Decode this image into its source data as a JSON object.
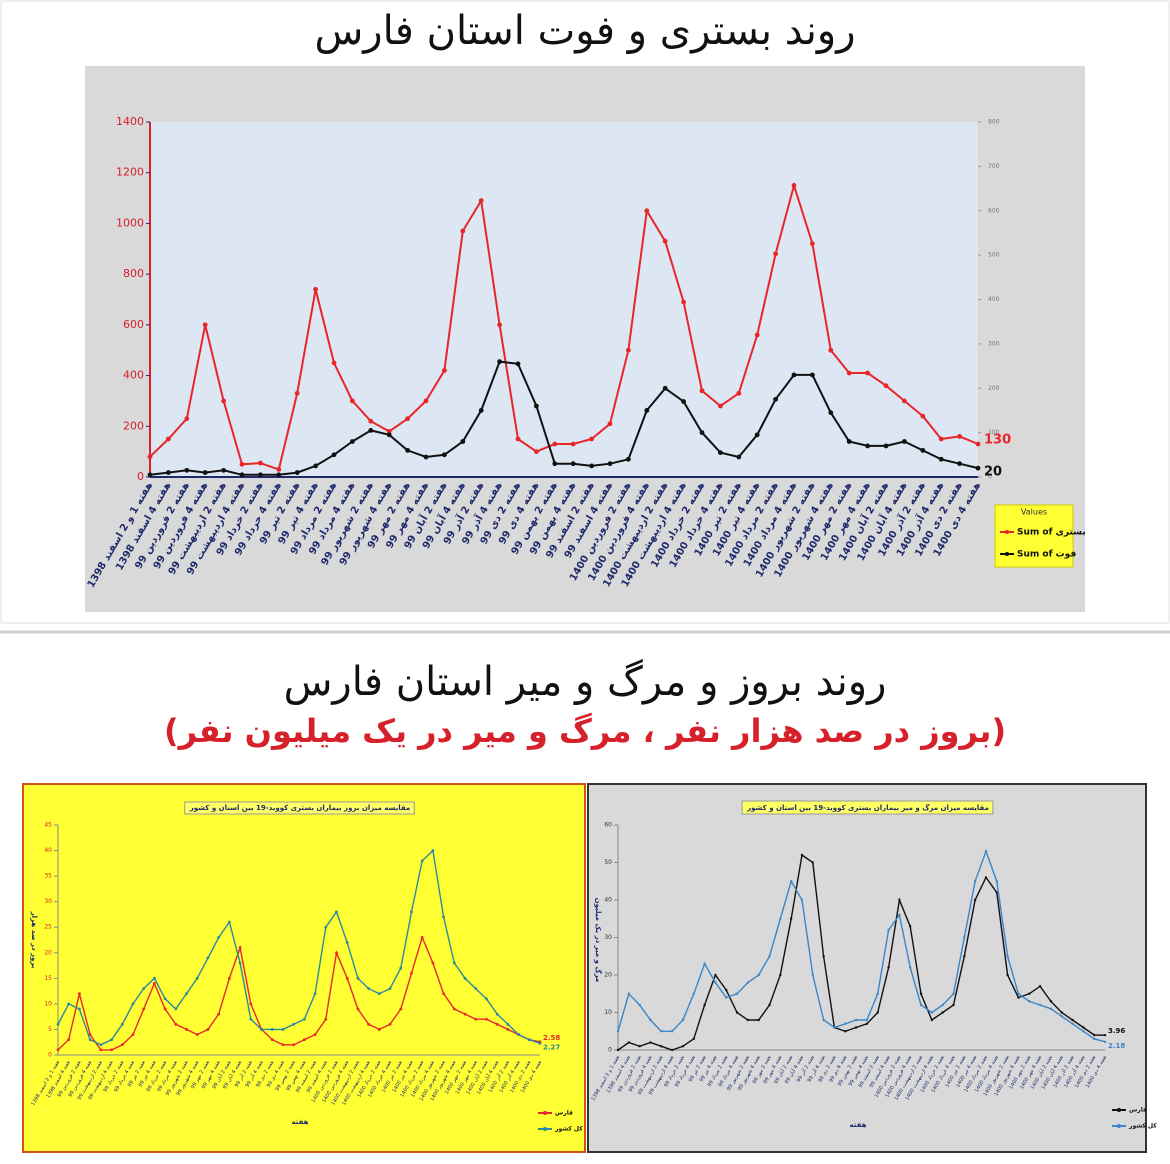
{
  "sections": [
    {
      "title": "روند بستری و فوت استان فارس"
    },
    {
      "title": "روند بروز و مرگ و میر استان فارس",
      "subtitle": "(بروز در صد هزار نفر ، مرگ و میر در یک میلیون نفر)"
    }
  ],
  "chart_data": [
    {
      "type": "line",
      "legend_title": "Values",
      "categories": [
        "هفته 1 و 2 اسفند 1398",
        "هفته 4 اسفند 1398",
        "هفته 2 فروردین 99",
        "هفته 4 فروردین 99",
        "هفته 2 اردیبهشت 99",
        "هفته 4 اردیبهشت 99",
        "هفته 2 خرداد 99",
        "هفته 4 خرداد 99",
        "هفته 2 تیر 99",
        "هفته 4 تیر 99",
        "هفته 2 مرداد 99",
        "هفته 4 مرداد 99",
        "هفته 2 شهریور 99",
        "هفته 4 شهریور 99",
        "هفته 2 مهر 99",
        "هفته 4 مهر 99",
        "هفته 2 آبان 99",
        "هفته 4 آبان 99",
        "هفته 2 آذر 99",
        "هفته 4 آذر 99",
        "هفته 2 دی 99",
        "هفته 4 دی 99",
        "هفته 2 بهمن 99",
        "هفته 4 بهمن 99",
        "هفته 2 اسفند 99",
        "هفته 4 اسفند 99",
        "هفته 2 فروردین 1400",
        "هفته 4 فروردین 1400",
        "هفته 2 اردیبهشت 1400",
        "هفته 4 اردیبهشت 1400",
        "هفته 2 خرداد 1400",
        "هفته 4 خرداد 1400",
        "هفته 2 تیر 1400",
        "هفته 4 تیر 1400",
        "هفته 2 مرداد 1400",
        "هفته 4 مرداد 1400",
        "هفته 2 شهریور 1400",
        "هفته 4 شهریور 1400",
        "هفته 2 مهر 1400",
        "هفته 4 مهر 1400",
        "هفته 2 آبان 1400",
        "هفته 4 آبان 1400",
        "هفته 2 آذر 1400",
        "هفته 4 آذر 1400",
        "هفته 2 دی 1400",
        "هفته 4 دی 1400"
      ],
      "series": [
        {
          "name": "Sum of بستری",
          "color": "#e8262a",
          "values": [
            80,
            150,
            230,
            600,
            300,
            50,
            55,
            30,
            330,
            740,
            450,
            300,
            220,
            180,
            230,
            300,
            420,
            970,
            1090,
            600,
            150,
            100,
            130,
            130,
            150,
            210,
            500,
            1050,
            930,
            690,
            340,
            280,
            330,
            560,
            880,
            1150,
            920,
            500,
            410,
            410,
            360,
            300,
            240,
            150,
            160,
            130
          ]
        },
        {
          "name": "Sum of فوت",
          "color": "#111111",
          "axis": "y2",
          "values": [
            5,
            10,
            15,
            10,
            15,
            5,
            5,
            5,
            10,
            25,
            50,
            80,
            105,
            95,
            60,
            45,
            50,
            80,
            150,
            260,
            255,
            160,
            30,
            30,
            25,
            30,
            40,
            150,
            200,
            170,
            100,
            55,
            45,
            95,
            175,
            230,
            230,
            145,
            80,
            70,
            70,
            80,
            60,
            40,
            30,
            20
          ]
        }
      ],
      "ylim": [
        0,
        1400
      ],
      "yticks": [
        0,
        200,
        400,
        600,
        800,
        1000,
        1200,
        1400
      ],
      "y2lim": [
        0,
        800
      ],
      "y2ticks": [
        0,
        100,
        200,
        300,
        400,
        500,
        600,
        700,
        800
      ],
      "grid": false
    },
    {
      "type": "line",
      "title": "مقایسه میزان بروز بیماران بستری کووید-19 بین استان و کشور",
      "y_label": "بروز در صد هزار",
      "x_label": "هفته",
      "categories": [
        "هفته 1 و 2 اسفند 1398",
        "هفته 4 اسفند 1398",
        "هفته 2 فروردین 99",
        "هفته 4 فروردین 99",
        "هفته 2 اردیبهشت 99",
        "هفته 4 اردیبهشت 99",
        "هفته 2 خرداد 99",
        "هفته 4 خرداد 99",
        "هفته 2 تیر 99",
        "هفته 4 تیر 99",
        "هفته 2 مرداد 99",
        "هفته 4 مرداد 99",
        "هفته 2 شهریور 99",
        "هفته 4 شهریور 99",
        "هفته 2 مهر 99",
        "هفته 4 مهر 99",
        "هفته 2 آبان 99",
        "هفته 4 آبان 99",
        "هفته 2 آذر 99",
        "هفته 4 آذر 99",
        "هفته 2 دی 99",
        "هفته 4 دی 99",
        "هفته 2 بهمن 99",
        "هفته 4 بهمن 99",
        "هفته 2 اسفند 99",
        "هفته 4 اسفند 99",
        "هفته 2 فروردین 1400",
        "هفته 4 فروردین 1400",
        "هفته 2 اردیبهشت 1400",
        "هفته 4 اردیبهشت 1400",
        "هفته 2 خرداد 1400",
        "هفته 4 خرداد 1400",
        "هفته 2 تیر 1400",
        "هفته 4 تیر 1400",
        "هفته 2 مرداد 1400",
        "هفته 4 مرداد 1400",
        "هفته 2 شهریور 1400",
        "هفته 4 شهریور 1400",
        "هفته 2 مهر 1400",
        "هفته 4 مهر 1400",
        "هفته 2 آبان 1400",
        "هفته 4 آبان 1400",
        "هفته 2 آذر 1400",
        "هفته 4 آذر 1400",
        "هفته 2 دی 1400",
        "هفته 4 دی 1400"
      ],
      "series": [
        {
          "name": "فارس",
          "color": "#e8262a",
          "values": [
            1,
            3,
            12,
            4,
            1,
            1,
            2,
            4,
            9,
            14,
            9,
            6,
            5,
            4,
            5,
            8,
            15,
            21,
            10,
            5,
            3,
            2,
            2,
            3,
            4,
            7,
            20,
            15,
            9,
            6,
            5,
            6,
            9,
            16,
            23,
            18,
            12,
            9,
            8,
            7,
            7,
            6,
            5,
            4,
            3,
            2.58
          ]
        },
        {
          "name": "کل کشور",
          "color": "#2b8a9e",
          "values": [
            6,
            10,
            9,
            3,
            2,
            3,
            6,
            10,
            13,
            15,
            11,
            9,
            12,
            15,
            19,
            23,
            26,
            18,
            7,
            5,
            5,
            5,
            6,
            7,
            12,
            25,
            28,
            22,
            15,
            13,
            12,
            13,
            17,
            28,
            38,
            40,
            27,
            18,
            15,
            13,
            11,
            8,
            6,
            4,
            3,
            2.27
          ]
        }
      ],
      "ylim": [
        0,
        45
      ],
      "yticks": [
        0,
        5,
        10,
        15,
        20,
        25,
        30,
        35,
        40,
        45
      ],
      "grid": false
    },
    {
      "type": "line",
      "title": "مقایسه میزان مرگ و میر بیماران بستری کووید-19 بین استان و کشور",
      "y_label": "مرگ و میر در یک میلیون",
      "x_label": "هفته",
      "categories": [
        "هفته 1 و 2 اسفند 1398",
        "هفته 4 اسفند 1398",
        "هفته 2 فروردین 99",
        "هفته 4 فروردین 99",
        "هفته 2 اردیبهشت 99",
        "هفته 4 اردیبهشت 99",
        "هفته 2 خرداد 99",
        "هفته 4 خرداد 99",
        "هفته 2 تیر 99",
        "هفته 4 تیر 99",
        "هفته 2 مرداد 99",
        "هفته 4 مرداد 99",
        "هفته 2 شهریور 99",
        "هفته 4 شهریور 99",
        "هفته 2 مهر 99",
        "هفته 4 مهر 99",
        "هفته 2 آبان 99",
        "هفته 4 آبان 99",
        "هفته 2 آذر 99",
        "هفته 4 آذر 99",
        "هفته 2 دی 99",
        "هفته 4 دی 99",
        "هفته 2 بهمن 99",
        "هفته 4 بهمن 99",
        "هفته 2 اسفند 99",
        "هفته 4 اسفند 99",
        "هفته 2 فروردین 1400",
        "هفته 4 فروردین 1400",
        "هفته 2 اردیبهشت 1400",
        "هفته 4 اردیبهشت 1400",
        "هفته 2 خرداد 1400",
        "هفته 4 خرداد 1400",
        "هفته 2 تیر 1400",
        "هفته 4 تیر 1400",
        "هفته 2 مرداد 1400",
        "هفته 4 مرداد 1400",
        "هفته 2 شهریور 1400",
        "هفته 4 شهریور 1400",
        "هفته 2 مهر 1400",
        "هفته 4 مهر 1400",
        "هفته 2 آبان 1400",
        "هفته 4 آبان 1400",
        "هفته 2 آذر 1400",
        "هفته 4 آذر 1400",
        "هفته 2 دی 1400",
        "هفته 4 دی 1400"
      ],
      "series": [
        {
          "name": "فارس",
          "color": "#111111",
          "values": [
            0,
            2,
            1,
            2,
            1,
            0,
            1,
            3,
            12,
            20,
            16,
            10,
            8,
            8,
            12,
            20,
            35,
            52,
            50,
            25,
            6,
            5,
            6,
            7,
            10,
            22,
            40,
            33,
            15,
            8,
            10,
            12,
            25,
            40,
            46,
            42,
            20,
            14,
            15,
            17,
            13,
            10,
            8,
            6,
            4,
            3.96
          ]
        },
        {
          "name": "کل کشور",
          "color": "#3a86c8",
          "values": [
            5,
            15,
            12,
            8,
            5,
            5,
            8,
            15,
            23,
            18,
            14,
            15,
            18,
            20,
            25,
            35,
            45,
            40,
            20,
            8,
            6,
            7,
            8,
            8,
            15,
            32,
            36,
            22,
            12,
            10,
            12,
            15,
            30,
            45,
            53,
            45,
            25,
            15,
            13,
            12,
            11,
            9,
            7,
            5,
            3,
            2.18
          ]
        }
      ],
      "ylim": [
        0,
        60
      ],
      "yticks": [
        0,
        10,
        20,
        30,
        40,
        50,
        60
      ],
      "grid": false
    }
  ]
}
